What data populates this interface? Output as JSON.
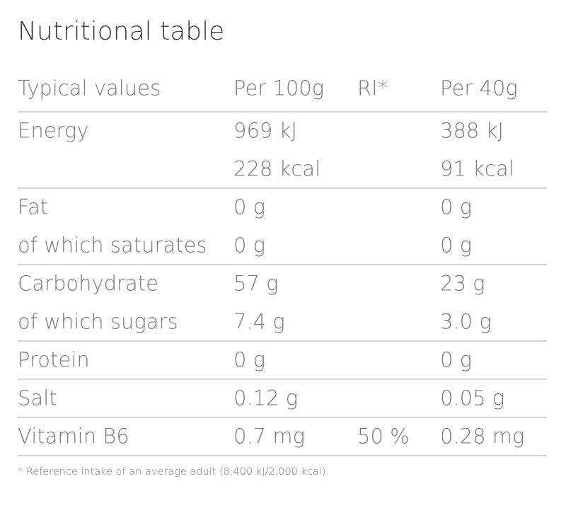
{
  "title": "Nutritional table",
  "header": {
    "label": "Typical values",
    "per100g": "Per 100g",
    "ri": "RI*",
    "per40g": "Per 40g"
  },
  "groups": [
    {
      "rows": [
        {
          "label": "Energy",
          "per100g": "969 kJ",
          "per40g": "388 kJ"
        },
        {
          "per100g": "228 kcal",
          "per40g": "91 kcal"
        }
      ]
    },
    {
      "rows": [
        {
          "label": "Fat",
          "per100g": "0 g",
          "per40g": "0 g"
        },
        {
          "label": "of which saturates",
          "per100g": "0 g",
          "per40g": "0 g"
        }
      ]
    },
    {
      "rows": [
        {
          "label": "Carbohydrate",
          "per100g": "57 g",
          "per40g": "23 g"
        },
        {
          "label": "of which sugars",
          "per100g": "7.4 g",
          "per40g": "3.0 g"
        }
      ]
    },
    {
      "rows": [
        {
          "label": "Protein",
          "per100g": "0 g",
          "per40g": "0 g"
        }
      ]
    },
    {
      "rows": [
        {
          "label": "Salt",
          "per100g": "0.12 g",
          "per40g": "0.05 g"
        }
      ]
    },
    {
      "rows": [
        {
          "label": "Vitamin B6",
          "per100g": "0.7 mg",
          "ri": "50 %",
          "per40g": "0.28 mg"
        }
      ]
    }
  ],
  "footnote": "* Reference intake of an average adult (8,400 kJ/2,000 kcal)."
}
